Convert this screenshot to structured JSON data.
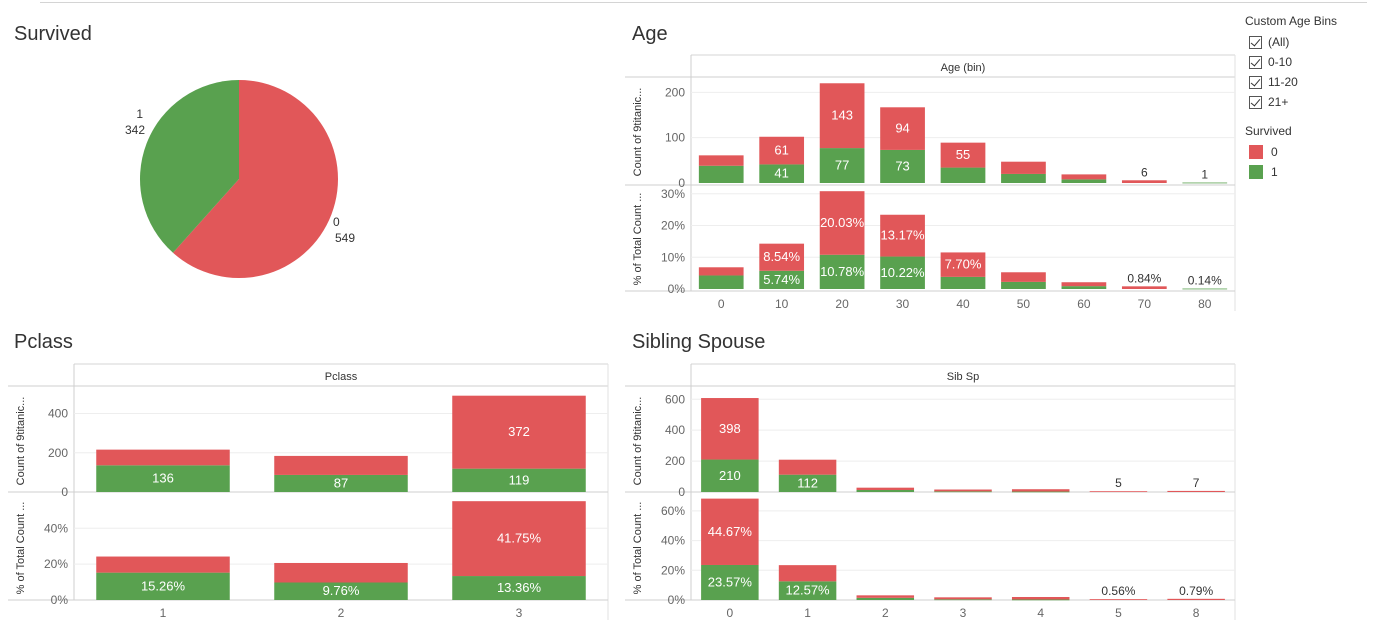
{
  "colors": {
    "died": "#E15759",
    "survived": "#59A14F",
    "grid": "#eeeeee",
    "axis": "#cccccc"
  },
  "legend": {
    "bins_title": "Custom Age Bins",
    "bins": [
      "(All)",
      "0-10",
      "11-20",
      "21+"
    ],
    "survived_title": "Survived",
    "survived_items": [
      "0",
      "1"
    ]
  },
  "sheets": {
    "survived": "Survived",
    "age": "Age",
    "pclass": "Pclass",
    "sibsp": "Sibling Spouse"
  },
  "chart_data": [
    {
      "type": "pie",
      "title": "Survived",
      "slices": [
        {
          "label": "0",
          "value": 549
        },
        {
          "label": "1",
          "value": 342
        }
      ]
    },
    {
      "type": "bar",
      "stacked": true,
      "title": "Age",
      "header": "Age (bin)",
      "categories": [
        "0",
        "10",
        "20",
        "30",
        "40",
        "50",
        "60",
        "70",
        "80"
      ],
      "count": {
        "ylabel": "Count of 9titanic...",
        "ylim": [
          0,
          225
        ],
        "yticks": [
          0,
          100,
          200
        ],
        "series": [
          {
            "name": "1",
            "values": [
              38,
              41,
              77,
              73,
              34,
              20,
              8,
              0,
              1
            ],
            "labels": [
              "",
              "41",
              "77",
              "73",
              "",
              "",
              "",
              "",
              ""
            ]
          },
          {
            "name": "0",
            "values": [
              23,
              61,
              143,
              94,
              55,
              27,
              11,
              6,
              0
            ],
            "labels": [
              "",
              "61",
              "143",
              "94",
              "55",
              "",
              "",
              "",
              ""
            ]
          }
        ],
        "total_labels": [
          "",
          "",
          "",
          "",
          "",
          "",
          "",
          "6",
          "1"
        ]
      },
      "percent": {
        "ylabel": "% of Total Count ...",
        "ylim": [
          0,
          31.5
        ],
        "yticks": [
          0,
          10,
          20,
          30
        ],
        "tick_format": "percent0",
        "series": [
          {
            "name": "1",
            "values": [
              4.26,
              5.74,
              10.78,
              10.22,
              3.82,
              2.24,
              0.9,
              0,
              0.14
            ],
            "labels": [
              "",
              "5.74%",
              "10.78%",
              "10.22%",
              "",
              "",
              "",
              "",
              ""
            ]
          },
          {
            "name": "0",
            "values": [
              2.58,
              8.54,
              20.03,
              13.17,
              7.7,
              3.03,
              1.23,
              0.84,
              0
            ],
            "labels": [
              "",
              "8.54%",
              "20.03%",
              "13.17%",
              "7.70%",
              "",
              "",
              "",
              ""
            ]
          }
        ],
        "total_labels": [
          "",
          "",
          "",
          "",
          "",
          "",
          "",
          "0.84%",
          "0.14%"
        ]
      }
    },
    {
      "type": "bar",
      "stacked": true,
      "title": "Pclass",
      "header": "Pclass",
      "categories": [
        "1",
        "2",
        "3"
      ],
      "count": {
        "ylabel": "Count of 9titanic...",
        "ylim": [
          0,
          520
        ],
        "yticks": [
          0,
          200,
          400
        ],
        "series": [
          {
            "name": "1",
            "values": [
              136,
              87,
              119
            ],
            "labels": [
              "136",
              "87",
              "119"
            ]
          },
          {
            "name": "0",
            "values": [
              80,
              97,
              372
            ],
            "labels": [
              "",
              "",
              "372"
            ]
          }
        ],
        "total_labels": [
          "",
          "",
          ""
        ]
      },
      "percent": {
        "ylabel": "% of Total Count ...",
        "ylim": [
          0,
          58
        ],
        "yticks": [
          0,
          20,
          40
        ],
        "tick_format": "percent0",
        "series": [
          {
            "name": "1",
            "values": [
              15.26,
              9.76,
              13.36
            ],
            "labels": [
              "15.26%",
              "9.76%",
              "13.36%"
            ]
          },
          {
            "name": "0",
            "values": [
              8.98,
              10.89,
              41.75
            ],
            "labels": [
              "",
              "",
              "41.75%"
            ]
          }
        ],
        "total_labels": [
          "",
          "",
          ""
        ]
      }
    },
    {
      "type": "bar",
      "stacked": true,
      "title": "Sibling Spouse",
      "header": "Sib Sp",
      "categories": [
        "0",
        "1",
        "2",
        "3",
        "4",
        "5",
        "8"
      ],
      "count": {
        "ylabel": "Count of 9titanic...",
        "ylim": [
          0,
          660
        ],
        "yticks": [
          0,
          200,
          400,
          600
        ],
        "series": [
          {
            "name": "1",
            "values": [
              210,
              112,
              13,
              4,
              3,
              0,
              0
            ],
            "labels": [
              "210",
              "112",
              "",
              "",
              "",
              "",
              ""
            ]
          },
          {
            "name": "0",
            "values": [
              398,
              97,
              15,
              12,
              15,
              5,
              7
            ],
            "labels": [
              "398",
              "",
              "",
              "",
              "",
              "",
              ""
            ]
          }
        ],
        "total_labels": [
          "",
          "",
          "",
          "",
          "",
          "5",
          "7"
        ]
      },
      "percent": {
        "ylabel": "% of Total Count ...",
        "ylim": [
          0,
          70
        ],
        "yticks": [
          0,
          20,
          40,
          60
        ],
        "tick_format": "percent0",
        "series": [
          {
            "name": "1",
            "values": [
              23.57,
              12.57,
              1.46,
              0.45,
              0.34,
              0,
              0
            ],
            "labels": [
              "23.57%",
              "12.57%",
              "",
              "",
              "",
              "",
              ""
            ]
          },
          {
            "name": "0",
            "values": [
              44.67,
              10.89,
              1.68,
              1.35,
              1.68,
              0.56,
              0.79
            ],
            "labels": [
              "44.67%",
              "",
              "",
              "",
              "",
              "",
              ""
            ]
          }
        ],
        "total_labels": [
          "",
          "",
          "",
          "",
          "",
          "0.56%",
          "0.79%"
        ]
      }
    }
  ]
}
